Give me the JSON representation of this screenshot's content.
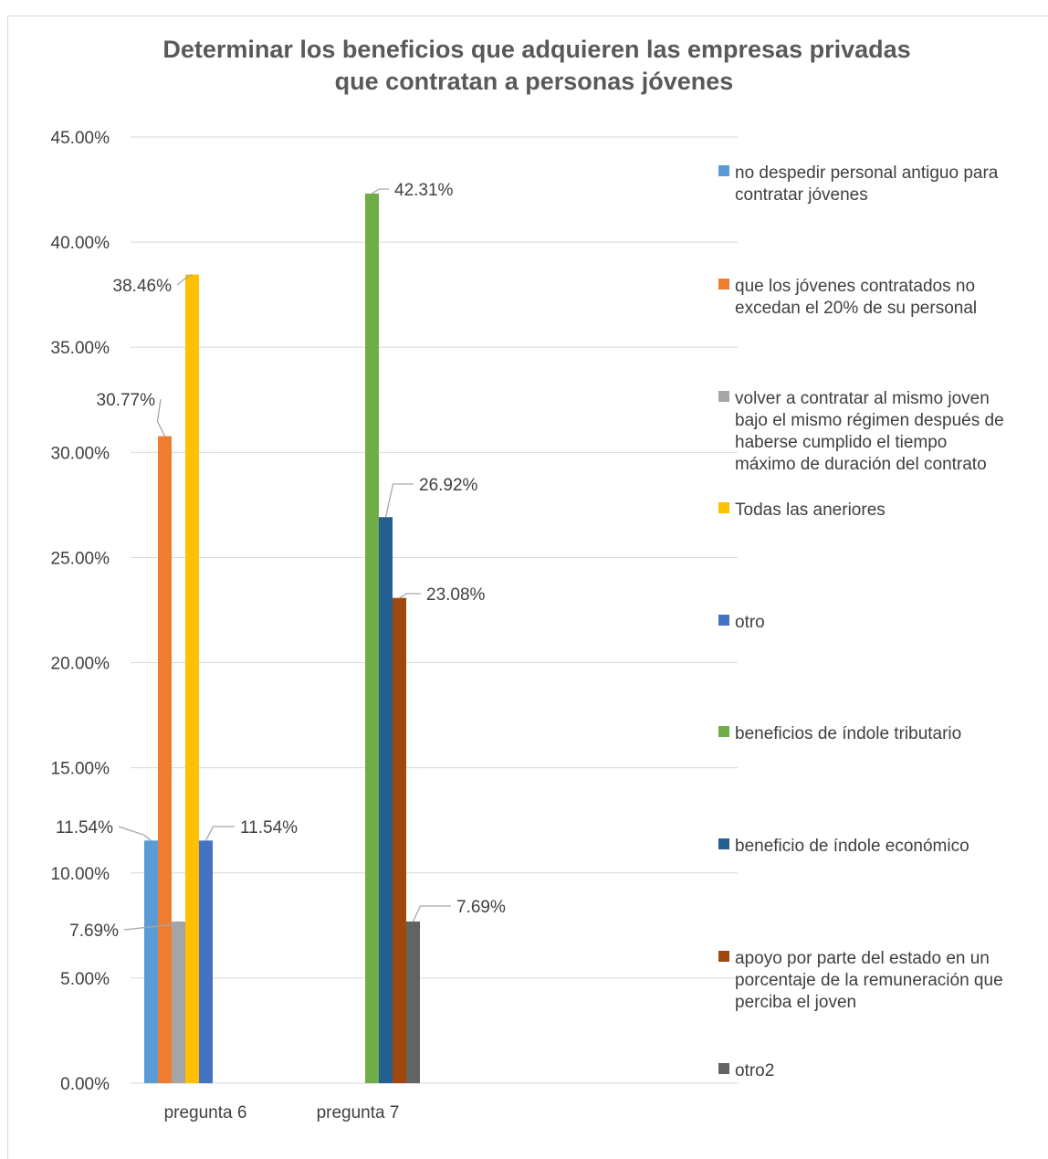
{
  "chart_data": {
    "type": "bar",
    "title_lines": [
      "Determinar los beneficios que adquieren las empresas privadas",
      "que contratan a personas jóvenes"
    ],
    "categories": [
      "pregunta 6",
      "pregunta 7"
    ],
    "ylim": [
      0,
      45
    ],
    "yticks": [
      "0.00%",
      "5.00%",
      "10.00%",
      "15.00%",
      "20.00%",
      "25.00%",
      "30.00%",
      "35.00%",
      "40.00%",
      "45.00%"
    ],
    "grid": true,
    "legend_position": "right",
    "series": [
      {
        "name": "no despedir personal antiguo para contratar jóvenes",
        "color": "#5b9bd5",
        "values": [
          11.54,
          null
        ],
        "labels": [
          "11.54%",
          ""
        ],
        "legend_lines": [
          "no despedir personal antiguo para",
          "contratar jóvenes"
        ]
      },
      {
        "name": "que los jóvenes contratados no excedan el 20% de su personal",
        "color": "#ed7d31",
        "values": [
          30.77,
          null
        ],
        "labels": [
          "30.77%",
          ""
        ],
        "legend_lines": [
          "que los jóvenes contratados no",
          "excedan el 20% de su personal"
        ]
      },
      {
        "name": "volver a contratar al mismo joven bajo el mismo régimen después de haberse cumplido el tiempo máximo de duración del contrato",
        "color": "#a5a5a5",
        "values": [
          7.69,
          null
        ],
        "labels": [
          "7.69%",
          ""
        ],
        "legend_lines": [
          "volver a contratar al mismo joven",
          "bajo el mismo régimen después de",
          "haberse cumplido el tiempo",
          "máximo de duración del contrato"
        ]
      },
      {
        "name": "Todas las aneriores",
        "color": "#ffc000",
        "values": [
          38.46,
          null
        ],
        "labels": [
          "38.46%",
          ""
        ],
        "legend_lines": [
          "Todas las aneriores"
        ]
      },
      {
        "name": "otro",
        "color": "#4472c4",
        "values": [
          11.54,
          null
        ],
        "labels": [
          "11.54%",
          ""
        ],
        "legend_lines": [
          "otro"
        ]
      },
      {
        "name": "beneficios de índole tributario",
        "color": "#70ad47",
        "values": [
          null,
          42.31
        ],
        "labels": [
          "",
          "42.31%"
        ],
        "legend_lines": [
          "beneficios de índole tributario"
        ]
      },
      {
        "name": "beneficio de índole económico",
        "color": "#255e91",
        "values": [
          null,
          26.92
        ],
        "labels": [
          "",
          "26.92%"
        ],
        "legend_lines": [
          "beneficio de índole económico"
        ]
      },
      {
        "name": "apoyo por parte del estado en un porcentaje de la remuneración que perciba el joven",
        "color": "#9e480e",
        "values": [
          null,
          23.08
        ],
        "labels": [
          "",
          "23.08%"
        ],
        "legend_lines": [
          "apoyo por parte del estado en un",
          "porcentaje de la remuneración que",
          "perciba el joven"
        ]
      },
      {
        "name": "otro2",
        "color": "#636363",
        "values": [
          null,
          7.69
        ],
        "labels": [
          "",
          "7.69%"
        ],
        "legend_lines": [
          "otro2"
        ]
      }
    ]
  }
}
